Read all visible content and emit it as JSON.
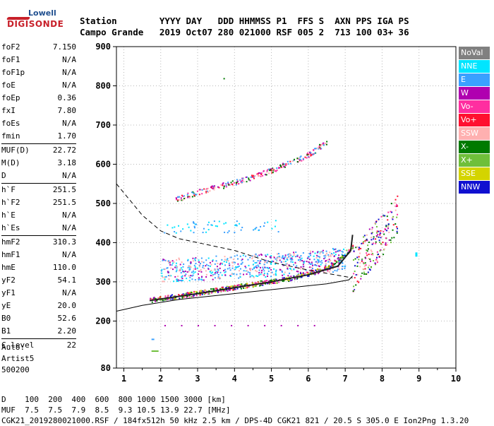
{
  "logo": {
    "line1": "Lowell",
    "line2": "DIGISONDE"
  },
  "header": {
    "line1": "Station        YYYY DAY   DDD HHMMSS P1  FFS S  AXN PPS IGA PS",
    "line2": "Campo Grande   2019 Oct07 280 021000 RSF 005 2  713 100 03+ 36"
  },
  "params": [
    {
      "name": "foF2",
      "value": "7.150"
    },
    {
      "name": "foF1",
      "value": "N/A"
    },
    {
      "name": "foF1p",
      "value": "N/A"
    },
    {
      "name": "foE",
      "value": "N/A"
    },
    {
      "name": "foEp",
      "value": "0.36"
    },
    {
      "name": "fxI",
      "value": "7.80"
    },
    {
      "name": "foEs",
      "value": "N/A"
    },
    {
      "name": "fmin",
      "value": "1.70"
    },
    {
      "name": "MUF(D)",
      "value": "22.72",
      "sep": true
    },
    {
      "name": "M(D)",
      "value": "3.18"
    },
    {
      "name": "D",
      "value": "N/A"
    },
    {
      "name": "h`F",
      "value": "251.5",
      "sep": true
    },
    {
      "name": "h`F2",
      "value": "251.5"
    },
    {
      "name": "h`E",
      "value": "N/A"
    },
    {
      "name": "h`Es",
      "value": "N/A"
    },
    {
      "name": "hmF2",
      "value": "310.3",
      "sep": true
    },
    {
      "name": "hmF1",
      "value": "N/A"
    },
    {
      "name": "hmE",
      "value": "110.0"
    },
    {
      "name": "yF2",
      "value": "54.1"
    },
    {
      "name": "yF1",
      "value": "N/A"
    },
    {
      "name": "yE",
      "value": "20.0"
    },
    {
      "name": "B0",
      "value": "52.6"
    },
    {
      "name": "B1",
      "value": "2.20"
    },
    {
      "name": "C-level",
      "value": "22",
      "sep": true
    }
  ],
  "artist": {
    "line1": "Auto:",
    "line2": "Artist5",
    "line3": "500200"
  },
  "legend": [
    {
      "label": "NoVal",
      "color": "#808080"
    },
    {
      "label": "NNE",
      "color": "#00e5ff"
    },
    {
      "label": "E",
      "color": "#3aa0ff"
    },
    {
      "label": "W",
      "color": "#b000b0"
    },
    {
      "label": "Vo-",
      "color": "#ff2ea0"
    },
    {
      "label": "Vo+",
      "color": "#ff1030"
    },
    {
      "label": "SSW",
      "color": "#ffb0b0"
    },
    {
      "label": "X-",
      "color": "#007a00"
    },
    {
      "label": "X+",
      "color": "#6fbf3a"
    },
    {
      "label": "SSE",
      "color": "#d4d400"
    },
    {
      "label": "NNW",
      "color": "#1010d0"
    }
  ],
  "chart_data": {
    "type": "scatter",
    "xlabel": "",
    "ylabel": "",
    "xlim": [
      0.8,
      10
    ],
    "ylim": [
      80,
      900
    ],
    "x_ticks": [
      1,
      2,
      3,
      4,
      5,
      6,
      7,
      8,
      9,
      10
    ],
    "y_ticks": [
      80,
      200,
      300,
      400,
      500,
      600,
      700,
      800,
      900
    ],
    "grid": true,
    "series": [
      {
        "name": "X-",
        "trace": [
          [
            2.4,
            510
          ],
          [
            3,
            530
          ],
          [
            4,
            555
          ],
          [
            5,
            585
          ],
          [
            6,
            625
          ],
          [
            6.5,
            660
          ]
        ]
      },
      {
        "name": "Vo-",
        "trace": [
          [
            1.7,
            255
          ],
          [
            2.5,
            265
          ],
          [
            3.5,
            280
          ],
          [
            4.5,
            295
          ],
          [
            5.5,
            310
          ],
          [
            6.5,
            335
          ],
          [
            7.2,
            390
          ]
        ]
      },
      {
        "name": "E",
        "trace": [
          [
            2,
            330
          ],
          [
            3,
            335
          ],
          [
            4,
            340
          ],
          [
            5,
            345
          ],
          [
            6,
            350
          ],
          [
            7,
            360
          ],
          [
            2,
            405
          ],
          [
            4,
            410
          ],
          [
            6,
            400
          ]
        ]
      }
    ],
    "model_curves": [
      {
        "name": "dashed",
        "points": [
          [
            0.8,
            550
          ],
          [
            1.5,
            470
          ],
          [
            2,
            430
          ],
          [
            2.5,
            410
          ],
          [
            3,
            400
          ],
          [
            3.5,
            390
          ],
          [
            4,
            380
          ],
          [
            5,
            350
          ],
          [
            6,
            330
          ],
          [
            7.2,
            310
          ]
        ]
      },
      {
        "name": "solid",
        "points": [
          [
            0.8,
            225
          ],
          [
            1.5,
            240
          ],
          [
            2.5,
            255
          ],
          [
            3.5,
            265
          ],
          [
            4.5,
            275
          ],
          [
            5.5,
            285
          ],
          [
            6.5,
            295
          ],
          [
            7.1,
            305
          ],
          [
            7.2,
            315
          ]
        ]
      },
      {
        "name": "profile",
        "points": [
          [
            1.7,
            252
          ],
          [
            3,
            270
          ],
          [
            4,
            285
          ],
          [
            5,
            300
          ],
          [
            6,
            318
          ],
          [
            6.8,
            340
          ],
          [
            7.15,
            380
          ],
          [
            7.2,
            420
          ]
        ]
      }
    ]
  },
  "footer": {
    "line1": "D    100  200  400  600  800 1000 1500 3000 [km]",
    "line2": "MUF  7.5  7.5  7.9  8.5  9.3 10.5 13.9 22.7 [MHz]",
    "line3": "CGK21_2019280021000.RSF / 184fx512h 50 kHz 2.5 km / DPS-4D CGK21 821 / 20.5 S 305.0 E Ion2Png 1.3.20"
  }
}
